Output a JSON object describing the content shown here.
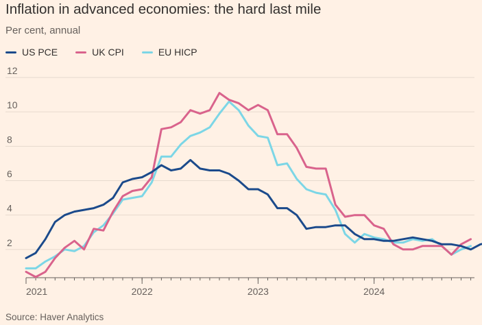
{
  "title": "Inflation in advanced economies: the hard last mile",
  "subtitle": "Per cent, annual",
  "source": "Source: Haver Analytics",
  "colors": {
    "background": "#FFF1E5",
    "grid": "#E6D9CE",
    "axis": "#66605C"
  },
  "chart_data": {
    "type": "line",
    "ylim": [
      0,
      12
    ],
    "yticks": [
      2,
      4,
      6,
      8,
      10,
      12
    ],
    "x_tick_labels": [
      "2021",
      "2022",
      "2023",
      "2024"
    ],
    "x_start": "2021-01",
    "grid": true,
    "legend_position": "top-left",
    "series": [
      {
        "name": "US PCE",
        "color": "#1B4A8B",
        "values": [
          1.5,
          1.8,
          2.6,
          3.6,
          4.0,
          4.2,
          4.3,
          4.4,
          4.6,
          5.0,
          5.9,
          6.1,
          6.2,
          6.5,
          6.9,
          6.6,
          6.7,
          7.2,
          6.7,
          6.6,
          6.6,
          6.4,
          6.0,
          5.5,
          5.5,
          5.2,
          4.4,
          4.4,
          4.0,
          3.2,
          3.3,
          3.3,
          3.4,
          3.4,
          2.9,
          2.6,
          2.6,
          2.5,
          2.5,
          2.6,
          2.7,
          2.6,
          2.5,
          2.3,
          2.3,
          2.2,
          2.0,
          2.3,
          2.4
        ]
      },
      {
        "name": "UK CPI",
        "color": "#D9638C",
        "values": [
          0.7,
          0.4,
          0.7,
          1.5,
          2.1,
          2.5,
          2.0,
          3.2,
          3.1,
          4.2,
          5.1,
          5.4,
          5.5,
          6.2,
          9.0,
          9.1,
          9.4,
          10.1,
          9.9,
          10.1,
          11.1,
          10.7,
          10.5,
          10.1,
          10.4,
          10.1,
          8.7,
          8.7,
          7.9,
          6.8,
          6.7,
          6.7,
          4.6,
          3.9,
          4.0,
          4.0,
          3.4,
          3.2,
          2.3,
          2.0,
          2.0,
          2.2,
          2.2,
          2.2,
          1.7,
          2.3,
          2.6
        ]
      },
      {
        "name": "EU HICP",
        "color": "#7CD6E6",
        "values": [
          0.9,
          0.9,
          1.3,
          1.6,
          2.0,
          1.9,
          2.2,
          3.0,
          3.4,
          4.1,
          4.9,
          5.0,
          5.1,
          5.9,
          7.4,
          7.4,
          8.1,
          8.6,
          8.8,
          9.1,
          9.9,
          10.6,
          10.1,
          9.2,
          8.6,
          8.5,
          6.9,
          7.0,
          6.1,
          5.5,
          5.3,
          5.2,
          4.3,
          2.9,
          2.4,
          2.9,
          2.7,
          2.6,
          2.4,
          2.4,
          2.6,
          2.5,
          2.6,
          2.2,
          1.7,
          2.0,
          2.2
        ]
      }
    ]
  }
}
